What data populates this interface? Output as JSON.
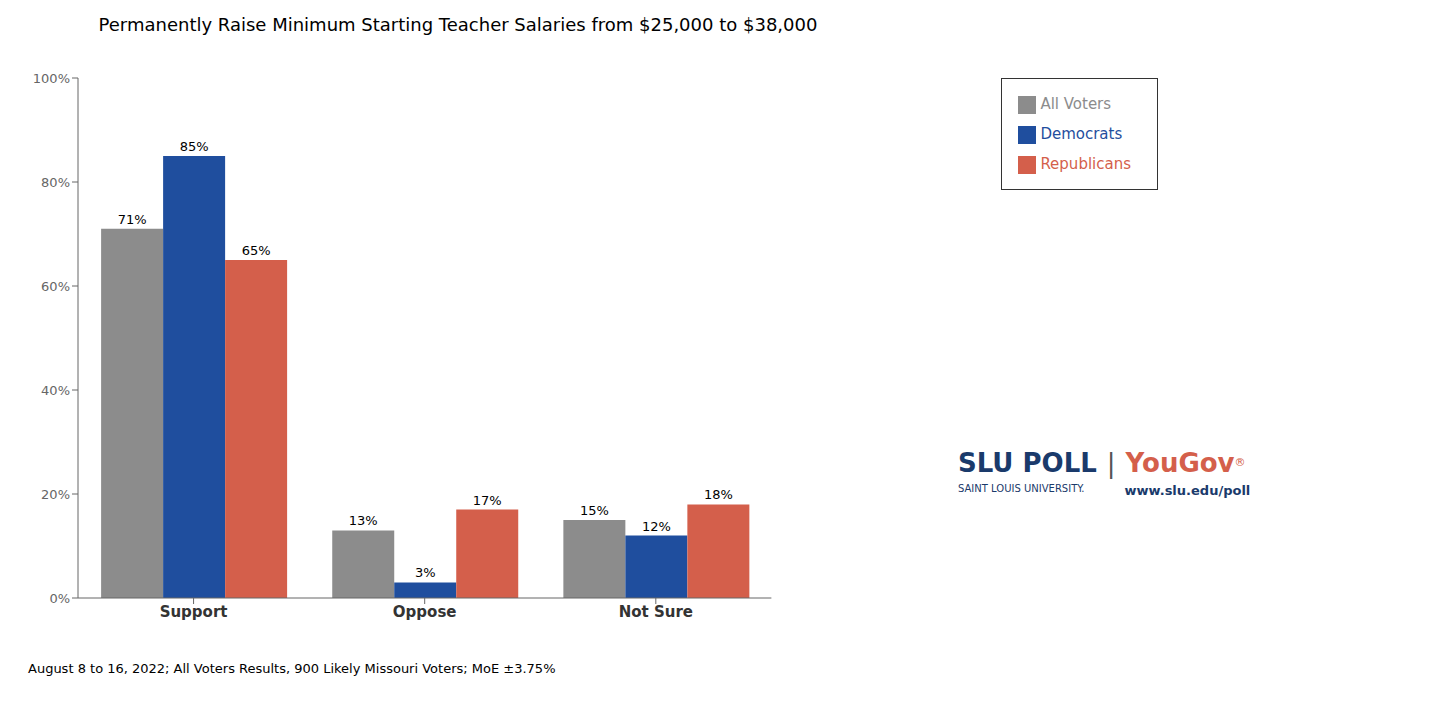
{
  "chart_data": {
    "type": "bar",
    "title": "Permanently Raise Minimum Starting Teacher Salaries from $25,000 to $38,000",
    "categories": [
      "Support",
      "Oppose",
      "Not Sure"
    ],
    "series": [
      {
        "name": "All Voters",
        "color": "#8c8c8c",
        "values": [
          71,
          13,
          15
        ],
        "value_labels": [
          "71%",
          "13%",
          "15%"
        ]
      },
      {
        "name": "Democrats",
        "color": "#1f4e9e",
        "values": [
          85,
          3,
          12
        ],
        "value_labels": [
          "85%",
          "3%",
          "12%"
        ]
      },
      {
        "name": "Republicans",
        "color": "#d45f4b",
        "values": [
          65,
          17,
          18
        ],
        "value_labels": [
          "65%",
          "17%",
          "18%"
        ]
      }
    ],
    "ylim": [
      0,
      100
    ],
    "yticks": [
      {
        "value": 0,
        "label": "0%"
      },
      {
        "value": 20,
        "label": "20%"
      },
      {
        "value": 40,
        "label": "40%"
      },
      {
        "value": 60,
        "label": "60%"
      },
      {
        "value": 80,
        "label": "80%"
      },
      {
        "value": 100,
        "label": "100%"
      }
    ],
    "grid": false,
    "legend": "upper right",
    "data_labels": true,
    "annotations": [
      {
        "text": "August 8 to 16, 2022; All Voters Results, 900 Likely Missouri Voters; MoE ±3.75%",
        "color": "#000000"
      },
      {
        "text": "SLU POLL",
        "color": "#1a3a6b"
      },
      {
        "text": "SAINT LOUIS UNIVERSITY.",
        "color": "#1a3a6b"
      },
      {
        "text": "|",
        "color": "#555555"
      },
      {
        "text": "YouGov",
        "color": "#d45f4b"
      },
      {
        "text": "®",
        "color": "#d45f4b"
      },
      {
        "text": "www.slu.edu/poll",
        "color": "#1a3a6b"
      }
    ]
  }
}
